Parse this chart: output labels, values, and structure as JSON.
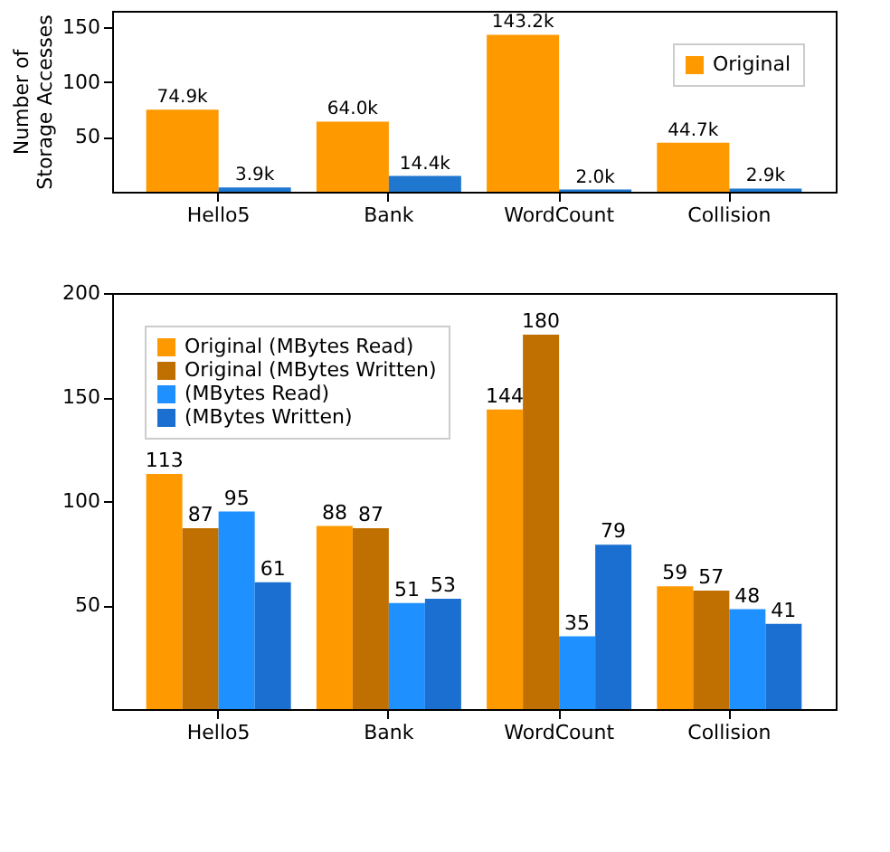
{
  "chart_data": [
    {
      "type": "bar",
      "ylabel": "Number of\nStorage Accesses",
      "categories": [
        "Hello5",
        "Bank",
        "WordCount",
        "Collision"
      ],
      "ylim": [
        0,
        165
      ],
      "yticks": [
        50,
        100,
        150
      ],
      "legend": "top right",
      "grid": false,
      "series": [
        {
          "name": "Original",
          "color": "#ff9900",
          "values": [
            74.9,
            64.0,
            143.2,
            44.7
          ],
          "value_labels": [
            "74.9k",
            "64.0k",
            "143.2k",
            "44.7k"
          ]
        },
        {
          "color": "#1f77d0",
          "values": [
            3.9,
            14.4,
            2.0,
            2.9
          ],
          "value_labels": [
            "3.9k",
            "14.4k",
            "2.0k",
            "2.9k"
          ]
        }
      ]
    },
    {
      "type": "bar",
      "categories": [
        "Hello5",
        "Bank",
        "WordCount",
        "Collision"
      ],
      "ylim": [
        0,
        200
      ],
      "yticks": [
        50,
        100,
        150,
        200
      ],
      "legend": "top left",
      "grid": false,
      "data_labels": true,
      "series": [
        {
          "name": "Original (MBytes Read)",
          "color": "#ff9900",
          "values": [
            113,
            88,
            144,
            59
          ]
        },
        {
          "name": "Original (MBytes Written)",
          "color": "#c07000",
          "values": [
            87,
            87,
            180,
            57
          ]
        },
        {
          "name": "(MBytes Read)",
          "color": "#1e90ff",
          "values": [
            95,
            51,
            35,
            48
          ]
        },
        {
          "name": "(MBytes Written)",
          "color": "#1a6fd0",
          "values": [
            61,
            53,
            79,
            41
          ]
        }
      ]
    }
  ]
}
